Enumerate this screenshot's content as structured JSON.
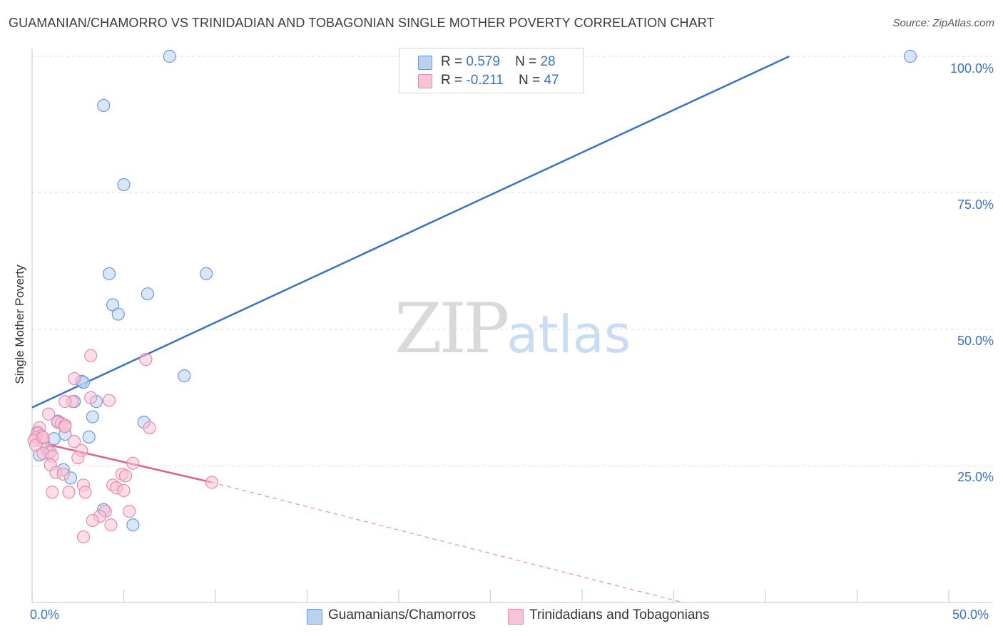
{
  "header": {
    "title": "GUAMANIAN/CHAMORRO VS TRINIDADIAN AND TOBAGONIAN SINGLE MOTHER POVERTY CORRELATION CHART",
    "source": "Source: ZipAtlas.com"
  },
  "watermark": {
    "part1": "ZIP",
    "part2": "atlas"
  },
  "stats_legend": {
    "rows": [
      {
        "r_label": "R =",
        "r_value": "0.579",
        "n_label": "N =",
        "n_value": "28"
      },
      {
        "r_label": "R =",
        "r_value": "-0.211",
        "n_label": "N =",
        "n_value": "47"
      }
    ]
  },
  "colors": {
    "blue": "#3a73c4",
    "blue_fill": "#b9d2f2",
    "blue_stroke": "#6a9ad8",
    "pink": "#e06090",
    "pink_fill": "#f8c3d6",
    "pink_stroke": "#e88aac",
    "grid": "#dedede",
    "axis": "#cfcfcf"
  },
  "chart_data": {
    "type": "scatter",
    "title": "GUAMANIAN/CHAMORRO VS TRINIDADIAN AND TOBAGONIAN SINGLE MOTHER POVERTY CORRELATION CHART",
    "xlabel": "",
    "ylabel": "Single Mother Poverty",
    "xlim": [
      0,
      50
    ],
    "ylim": [
      0,
      100
    ],
    "x_tick_labels": [
      "0.0%",
      "50.0%"
    ],
    "y_tick_labels": [
      "25.0%",
      "50.0%",
      "75.0%",
      "100.0%"
    ],
    "y_ticks": [
      25,
      50,
      75,
      100
    ],
    "grid": true,
    "legend_position": "bottom",
    "series": [
      {
        "name": "Guamanians/Chamorros",
        "color": "blue",
        "r": 0.579,
        "n": 28,
        "trend": {
          "x": [
            0,
            41.3
          ],
          "y": [
            35.7,
            100
          ],
          "dashed_extension": false
        },
        "points": [
          {
            "x": 7.5,
            "y": 100
          },
          {
            "x": 47.9,
            "y": 100
          },
          {
            "x": 3.9,
            "y": 91
          },
          {
            "x": 5.0,
            "y": 76.5
          },
          {
            "x": 4.2,
            "y": 60.2
          },
          {
            "x": 9.5,
            "y": 60.2
          },
          {
            "x": 6.3,
            "y": 56.5
          },
          {
            "x": 4.4,
            "y": 54.5
          },
          {
            "x": 4.7,
            "y": 52.8
          },
          {
            "x": 8.3,
            "y": 41.5
          },
          {
            "x": 2.7,
            "y": 40.5
          },
          {
            "x": 2.8,
            "y": 40.3
          },
          {
            "x": 3.5,
            "y": 36.8
          },
          {
            "x": 2.3,
            "y": 36.8
          },
          {
            "x": 3.3,
            "y": 34.0
          },
          {
            "x": 6.1,
            "y": 33.0
          },
          {
            "x": 1.4,
            "y": 33.2
          },
          {
            "x": 1.8,
            "y": 30.8
          },
          {
            "x": 3.1,
            "y": 30.3
          },
          {
            "x": 1.2,
            "y": 30.0
          },
          {
            "x": 0.6,
            "y": 29.5
          },
          {
            "x": 0.3,
            "y": 31.2
          },
          {
            "x": 0.9,
            "y": 27.5
          },
          {
            "x": 0.4,
            "y": 27.0
          },
          {
            "x": 1.7,
            "y": 24.3
          },
          {
            "x": 2.1,
            "y": 22.8
          },
          {
            "x": 3.9,
            "y": 17.0
          },
          {
            "x": 5.5,
            "y": 14.2
          }
        ]
      },
      {
        "name": "Trinidadians and Tobagonians",
        "color": "pink",
        "r": -0.211,
        "n": 47,
        "trend": {
          "x": [
            0,
            9.8
          ],
          "y": [
            29.6,
            22.0
          ],
          "dashed_extension": true,
          "dash_to": {
            "x": 35.5,
            "y": 0
          }
        },
        "points": [
          {
            "x": 3.2,
            "y": 45.2
          },
          {
            "x": 6.2,
            "y": 44.5
          },
          {
            "x": 2.3,
            "y": 41.0
          },
          {
            "x": 3.2,
            "y": 37.5
          },
          {
            "x": 4.2,
            "y": 37.0
          },
          {
            "x": 2.2,
            "y": 36.8
          },
          {
            "x": 1.8,
            "y": 36.8
          },
          {
            "x": 0.9,
            "y": 34.5
          },
          {
            "x": 1.4,
            "y": 33.0
          },
          {
            "x": 1.6,
            "y": 32.8
          },
          {
            "x": 1.8,
            "y": 32.5
          },
          {
            "x": 0.4,
            "y": 32.0
          },
          {
            "x": 1.8,
            "y": 32.2
          },
          {
            "x": 6.4,
            "y": 32.0
          },
          {
            "x": 0.3,
            "y": 31.0
          },
          {
            "x": 0.5,
            "y": 30.5
          },
          {
            "x": 0.2,
            "y": 30.2
          },
          {
            "x": 0.1,
            "y": 29.7
          },
          {
            "x": 2.3,
            "y": 29.5
          },
          {
            "x": 0.2,
            "y": 28.8
          },
          {
            "x": 0.8,
            "y": 28.2
          },
          {
            "x": 2.7,
            "y": 27.8
          },
          {
            "x": 1.0,
            "y": 27.5
          },
          {
            "x": 0.6,
            "y": 27.3
          },
          {
            "x": 1.1,
            "y": 26.8
          },
          {
            "x": 2.5,
            "y": 26.5
          },
          {
            "x": 1.0,
            "y": 25.2
          },
          {
            "x": 5.5,
            "y": 25.5
          },
          {
            "x": 4.9,
            "y": 23.5
          },
          {
            "x": 5.1,
            "y": 23.2
          },
          {
            "x": 1.3,
            "y": 23.8
          },
          {
            "x": 1.7,
            "y": 23.5
          },
          {
            "x": 9.8,
            "y": 22.0
          },
          {
            "x": 2.8,
            "y": 21.5
          },
          {
            "x": 4.4,
            "y": 21.5
          },
          {
            "x": 4.6,
            "y": 21.0
          },
          {
            "x": 5.0,
            "y": 20.5
          },
          {
            "x": 1.1,
            "y": 20.2
          },
          {
            "x": 2.0,
            "y": 20.2
          },
          {
            "x": 2.9,
            "y": 20.2
          },
          {
            "x": 4.0,
            "y": 16.7
          },
          {
            "x": 5.3,
            "y": 16.7
          },
          {
            "x": 3.7,
            "y": 15.8
          },
          {
            "x": 3.3,
            "y": 15.0
          },
          {
            "x": 4.3,
            "y": 14.2
          },
          {
            "x": 2.8,
            "y": 12.0
          },
          {
            "x": 0.6,
            "y": 30.2
          }
        ]
      }
    ]
  }
}
